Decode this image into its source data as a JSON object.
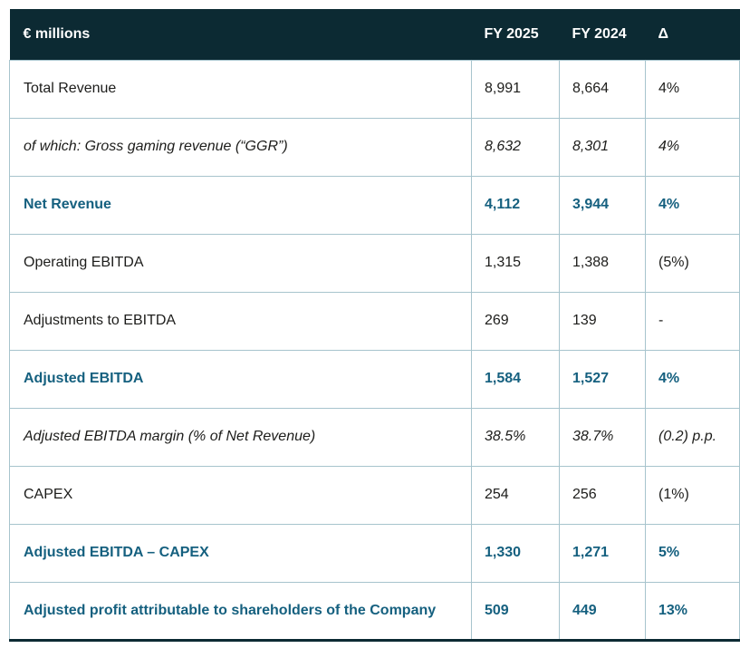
{
  "colors": {
    "header_bg": "#0c2a33",
    "header_text": "#ffffff",
    "body_text": "#1d1d1b",
    "accent_text": "#15607f",
    "grid_border": "#a7c4cd",
    "bottom_border": "#0c2a33"
  },
  "table": {
    "columns": [
      {
        "key": "label",
        "label": "€ millions"
      },
      {
        "key": "fy2025",
        "label": "FY 2025"
      },
      {
        "key": "fy2024",
        "label": "FY 2024"
      },
      {
        "key": "delta",
        "label": "Δ"
      }
    ],
    "rows": [
      {
        "label": "Total Revenue",
        "fy2025": "8,991",
        "fy2024": "8,664",
        "delta": "4%",
        "style": "normal"
      },
      {
        "label": "of which: Gross gaming revenue (“GGR”)",
        "fy2025": "8,632",
        "fy2024": "8,301",
        "delta": "4%",
        "style": "italic"
      },
      {
        "label": "Net Revenue",
        "fy2025": "4,112",
        "fy2024": "3,944",
        "delta": "4%",
        "style": "emphasis"
      },
      {
        "label": "Operating EBITDA",
        "fy2025": "1,315",
        "fy2024": "1,388",
        "delta": "(5%)",
        "style": "normal"
      },
      {
        "label": "Adjustments to EBITDA",
        "fy2025": "269",
        "fy2024": "139",
        "delta": "-",
        "style": "normal"
      },
      {
        "label": "Adjusted EBITDA",
        "fy2025": "1,584",
        "fy2024": "1,527",
        "delta": "4%",
        "style": "emphasis"
      },
      {
        "label": "Adjusted EBITDA margin (% of Net Revenue)",
        "fy2025": "38.5%",
        "fy2024": "38.7%",
        "delta": "(0.2) p.p.",
        "style": "italic"
      },
      {
        "label": "CAPEX",
        "fy2025": "254",
        "fy2024": "256",
        "delta": "(1%)",
        "style": "normal"
      },
      {
        "label": "Adjusted EBITDA – CAPEX",
        "fy2025": "1,330",
        "fy2024": "1,271",
        "delta": "5%",
        "style": "emphasis"
      },
      {
        "label": "Adjusted profit attributable to shareholders of the Company",
        "fy2025": "509",
        "fy2024": "449",
        "delta": "13%",
        "style": "emphasis"
      }
    ]
  }
}
